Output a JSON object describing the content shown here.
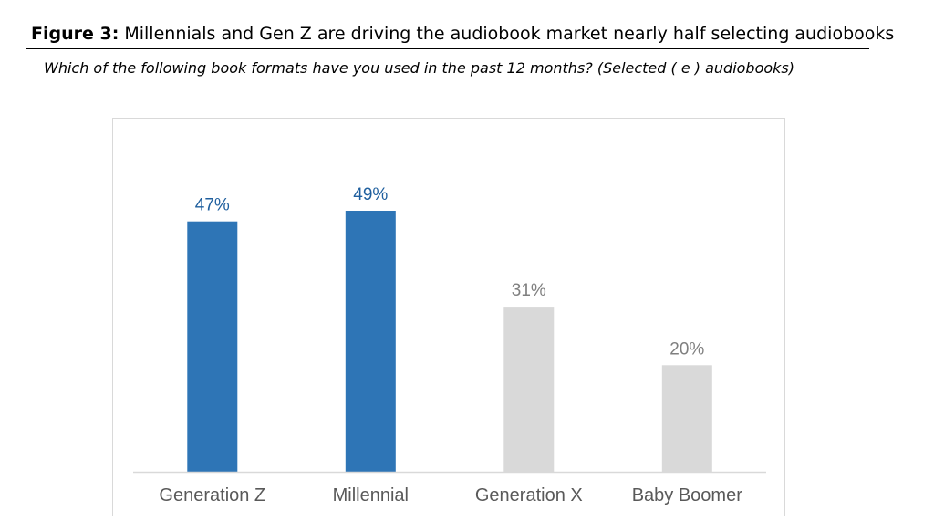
{
  "figure": {
    "label": "Figure 3:",
    "title": " Millennials and Gen Z are driving the audiobook market nearly half selecting audiobooks",
    "subtitle": "Which of the following book formats have you used in the past 12 months? (Selected ( e ) audiobooks)"
  },
  "chart_data": {
    "type": "bar",
    "categories": [
      "Generation Z",
      "Millennial",
      "Generation X",
      "Baby Boomer"
    ],
    "values": [
      47,
      49,
      31,
      20
    ],
    "value_labels": [
      "47%",
      "49%",
      "31%",
      "20%"
    ],
    "bar_colors": [
      "#2e75b6",
      "#2e75b6",
      "#d9d9d9",
      "#d9d9d9"
    ],
    "label_colors": [
      "#1f5f9e",
      "#1f5f9e",
      "#7f7f7f",
      "#7f7f7f"
    ],
    "title": "",
    "xlabel": "",
    "ylabel": "",
    "ylim": [
      0,
      55
    ],
    "grid": false,
    "legend": "none"
  }
}
